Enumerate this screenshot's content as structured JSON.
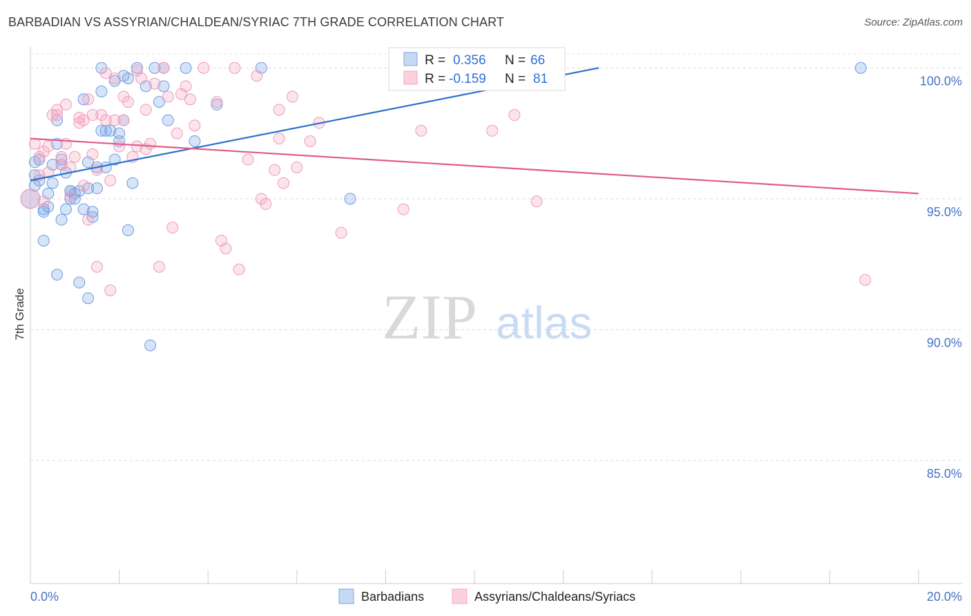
{
  "title": "BARBADIAN VS ASSYRIAN/CHALDEAN/SYRIAC 7TH GRADE CORRELATION CHART",
  "source": "Source: ZipAtlas.com",
  "watermark": {
    "zip": "ZIP",
    "atlas": "atlas"
  },
  "legend": {
    "r_label": "R =",
    "n_label": "N =",
    "series": [
      {
        "r": "0.356",
        "n": "66"
      },
      {
        "r": "-0.159",
        "n": "81"
      }
    ]
  },
  "chart_data": {
    "type": "scatter",
    "title": "BARBADIAN VS ASSYRIAN/CHALDEAN/SYRIAC 7TH GRADE CORRELATION CHART",
    "xlabel": "",
    "ylabel": "7th Grade",
    "xlim": [
      0,
      20
    ],
    "ylim": [
      80.3,
      100.8
    ],
    "x_ticks": [
      0,
      20
    ],
    "x_tick_labels": [
      "0.0%",
      "20.0%"
    ],
    "y_ticks": [
      100,
      95,
      90,
      85
    ],
    "y_tick_labels": [
      "100.0%",
      "95.0%",
      "90.0%",
      "85.0%"
    ],
    "grid": true,
    "series": [
      {
        "name": "Barbadians",
        "color": "#7aa7e8",
        "trend": {
          "x": [
            0,
            12.8
          ],
          "y": [
            95.7,
            100.0
          ],
          "color": "#2a6fcf"
        },
        "points": [
          [
            0.0,
            95.0
          ],
          [
            0.1,
            95.9
          ],
          [
            0.1,
            95.5
          ],
          [
            0.1,
            96.4
          ],
          [
            0.2,
            96.5
          ],
          [
            0.2,
            95.7
          ],
          [
            0.3,
            94.6
          ],
          [
            0.3,
            94.5
          ],
          [
            0.3,
            93.4
          ],
          [
            0.4,
            95.2
          ],
          [
            0.4,
            94.7
          ],
          [
            0.5,
            95.6
          ],
          [
            0.6,
            92.1
          ],
          [
            0.6,
            98.0
          ],
          [
            0.6,
            97.1
          ],
          [
            0.7,
            96.3
          ],
          [
            0.7,
            96.5
          ],
          [
            0.7,
            94.2
          ],
          [
            0.8,
            96.0
          ],
          [
            0.8,
            94.6
          ],
          [
            0.9,
            95.0
          ],
          [
            0.9,
            95.3
          ],
          [
            1.0,
            95.2
          ],
          [
            1.0,
            95.0
          ],
          [
            1.1,
            91.8
          ],
          [
            1.1,
            95.3
          ],
          [
            1.2,
            98.8
          ],
          [
            1.2,
            94.6
          ],
          [
            1.3,
            95.4
          ],
          [
            1.3,
            91.2
          ],
          [
            1.3,
            96.4
          ],
          [
            1.4,
            94.3
          ],
          [
            1.4,
            94.5
          ],
          [
            1.5,
            95.4
          ],
          [
            1.5,
            96.2
          ],
          [
            1.6,
            100.0
          ],
          [
            1.6,
            99.1
          ],
          [
            1.6,
            97.6
          ],
          [
            1.7,
            96.2
          ],
          [
            1.8,
            97.6
          ],
          [
            1.9,
            99.5
          ],
          [
            1.9,
            96.5
          ],
          [
            2.0,
            97.2
          ],
          [
            2.0,
            97.5
          ],
          [
            2.1,
            99.7
          ],
          [
            2.1,
            98.0
          ],
          [
            2.2,
            93.8
          ],
          [
            2.2,
            99.6
          ],
          [
            2.3,
            95.6
          ],
          [
            2.4,
            100.0
          ],
          [
            2.6,
            99.3
          ],
          [
            2.7,
            89.4
          ],
          [
            2.9,
            98.7
          ],
          [
            3.0,
            99.3
          ],
          [
            3.0,
            100.0
          ],
          [
            3.1,
            98.0
          ],
          [
            3.5,
            100.0
          ],
          [
            3.7,
            97.2
          ],
          [
            4.2,
            98.6
          ],
          [
            5.2,
            100.0
          ],
          [
            7.2,
            95.0
          ],
          [
            18.7,
            100.0
          ],
          [
            0.5,
            96.3
          ],
          [
            0.9,
            95.3
          ],
          [
            1.7,
            97.6
          ],
          [
            2.8,
            100.0
          ]
        ]
      },
      {
        "name": "Assyrians/Chaldeans/Syriacs",
        "color": "#f4a6bf",
        "trend": {
          "x": [
            0,
            20
          ],
          "y": [
            97.3,
            95.2
          ],
          "color": "#e05a8a"
        },
        "points": [
          [
            0.0,
            95.0
          ],
          [
            0.1,
            97.1
          ],
          [
            0.2,
            96.6
          ],
          [
            0.2,
            95.9
          ],
          [
            0.3,
            96.8
          ],
          [
            0.3,
            94.9
          ],
          [
            0.4,
            96.0
          ],
          [
            0.4,
            97.0
          ],
          [
            0.5,
            98.2
          ],
          [
            0.6,
            98.4
          ],
          [
            0.6,
            98.2
          ],
          [
            0.7,
            96.3
          ],
          [
            0.7,
            96.6
          ],
          [
            0.8,
            98.6
          ],
          [
            0.8,
            97.1
          ],
          [
            0.9,
            95.1
          ],
          [
            0.9,
            96.2
          ],
          [
            1.0,
            96.6
          ],
          [
            1.1,
            97.9
          ],
          [
            1.1,
            98.1
          ],
          [
            1.2,
            95.5
          ],
          [
            1.2,
            98.0
          ],
          [
            1.3,
            98.8
          ],
          [
            1.3,
            94.2
          ],
          [
            1.4,
            96.7
          ],
          [
            1.4,
            98.2
          ],
          [
            1.5,
            96.1
          ],
          [
            1.5,
            92.4
          ],
          [
            1.6,
            98.2
          ],
          [
            1.7,
            99.8
          ],
          [
            1.7,
            98.0
          ],
          [
            1.8,
            95.7
          ],
          [
            1.8,
            91.5
          ],
          [
            1.9,
            98.0
          ],
          [
            1.9,
            99.6
          ],
          [
            2.0,
            97.0
          ],
          [
            2.1,
            98.9
          ],
          [
            2.1,
            98.0
          ],
          [
            2.2,
            98.7
          ],
          [
            2.3,
            96.6
          ],
          [
            2.4,
            97.0
          ],
          [
            2.5,
            99.6
          ],
          [
            2.6,
            96.9
          ],
          [
            2.6,
            98.4
          ],
          [
            2.7,
            97.1
          ],
          [
            2.8,
            99.4
          ],
          [
            2.9,
            92.4
          ],
          [
            3.0,
            100.0
          ],
          [
            3.1,
            98.9
          ],
          [
            3.2,
            93.9
          ],
          [
            3.3,
            97.5
          ],
          [
            3.4,
            99.0
          ],
          [
            3.5,
            99.3
          ],
          [
            3.6,
            98.8
          ],
          [
            3.7,
            97.8
          ],
          [
            3.9,
            100.0
          ],
          [
            4.3,
            93.4
          ],
          [
            4.4,
            93.1
          ],
          [
            4.6,
            100.0
          ],
          [
            4.7,
            92.3
          ],
          [
            4.9,
            96.5
          ],
          [
            5.1,
            99.7
          ],
          [
            5.2,
            95.0
          ],
          [
            5.3,
            94.8
          ],
          [
            5.5,
            96.1
          ],
          [
            5.6,
            97.3
          ],
          [
            5.6,
            98.4
          ],
          [
            5.7,
            95.6
          ],
          [
            5.9,
            98.9
          ],
          [
            6.0,
            96.2
          ],
          [
            6.3,
            97.2
          ],
          [
            6.5,
            97.9
          ],
          [
            7.0,
            93.7
          ],
          [
            8.4,
            94.6
          ],
          [
            8.8,
            97.6
          ],
          [
            10.4,
            97.6
          ],
          [
            10.9,
            98.2
          ],
          [
            11.4,
            94.9
          ],
          [
            18.8,
            91.9
          ],
          [
            4.2,
            98.7
          ],
          [
            2.4,
            99.9
          ]
        ]
      }
    ]
  }
}
